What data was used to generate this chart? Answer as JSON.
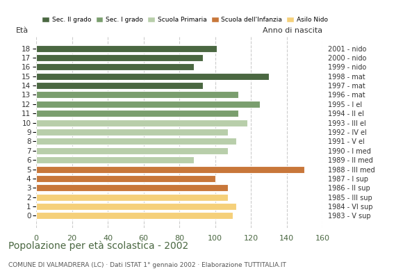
{
  "ages": [
    18,
    17,
    16,
    15,
    14,
    13,
    12,
    11,
    10,
    9,
    8,
    7,
    6,
    5,
    4,
    3,
    2,
    1,
    0
  ],
  "values": [
    101,
    93,
    88,
    130,
    93,
    113,
    125,
    113,
    118,
    107,
    112,
    107,
    88,
    150,
    100,
    107,
    107,
    112,
    110
  ],
  "right_labels": [
    "1983 - V sup",
    "1984 - VI sup",
    "1985 - III sup",
    "1986 - II sup",
    "1987 - I sup",
    "1988 - III med",
    "1989 - II med",
    "1990 - I med",
    "1991 - V el",
    "1992 - IV el",
    "1993 - III el",
    "1994 - II el",
    "1995 - I el",
    "1996 - mat",
    "1997 - mat",
    "1998 - mat",
    "1999 - nido",
    "2000 - nido",
    "2001 - nido"
  ],
  "bar_colors": [
    "#4a6741",
    "#4a6741",
    "#4a6741",
    "#4a6741",
    "#4a6741",
    "#7a9e6e",
    "#7a9e6e",
    "#7a9e6e",
    "#b8ceaa",
    "#b8ceaa",
    "#b8ceaa",
    "#b8ceaa",
    "#b8ceaa",
    "#c8773a",
    "#c8773a",
    "#c8773a",
    "#f5d07a",
    "#f5d07a",
    "#f5d07a"
  ],
  "title": "Popolazione per età scolastica - 2002",
  "subtitle": "COMUNE DI VALMADRERA (LC) · Dati ISTAT 1° gennaio 2002 · Elaborazione TUTTITALIA.IT",
  "xlim": [
    0,
    160
  ],
  "xticks": [
    0,
    20,
    40,
    60,
    80,
    100,
    120,
    140,
    160
  ],
  "ylabel_left": "Età",
  "ylabel_right": "Anno di nascita",
  "legend_labels": [
    "Sec. II grado",
    "Sec. I grado",
    "Scuola Primaria",
    "Scuola dell'Infanzia",
    "Asilo Nido"
  ],
  "legend_colors": [
    "#4a6741",
    "#7a9e6e",
    "#b8ceaa",
    "#c8773a",
    "#f5d07a"
  ],
  "grid_color": "#cccccc",
  "background_color": "#ffffff",
  "text_color": "#4a6741"
}
